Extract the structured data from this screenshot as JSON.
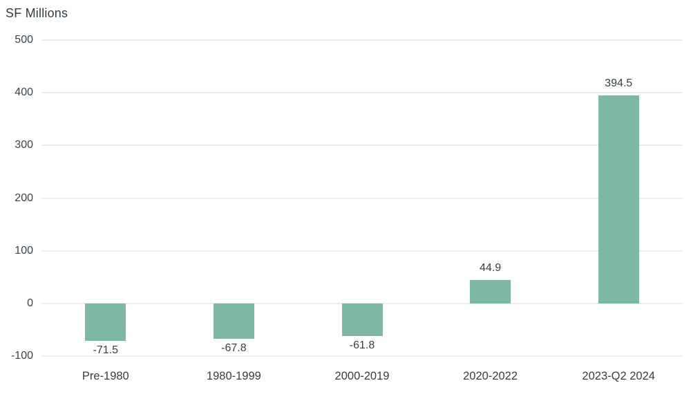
{
  "title": "SF Millions",
  "colors": {
    "bar": "#7db8a7",
    "text": "#343e44",
    "axis_text": "#38424a",
    "grid": "#ededed",
    "background": "#ffffff"
  },
  "chart_data": {
    "type": "bar",
    "title": "SF Millions",
    "ylabel": "SF Millions",
    "xlabel": "",
    "categories": [
      "Pre-1980",
      "1980-1999",
      "2000-2019",
      "2020-2022",
      "2023-Q2 2024"
    ],
    "values": [
      -71.5,
      -67.8,
      -61.8,
      44.9,
      394.5
    ],
    "value_labels": [
      "-71.5",
      "-67.8",
      "-61.8",
      "44.9",
      "394.5"
    ],
    "yticks": [
      500,
      400,
      300,
      200,
      100,
      0,
      -100
    ],
    "ylim": [
      -100,
      500
    ],
    "grid": true,
    "legend_position": "none",
    "bar_color": "#7db8a7"
  }
}
